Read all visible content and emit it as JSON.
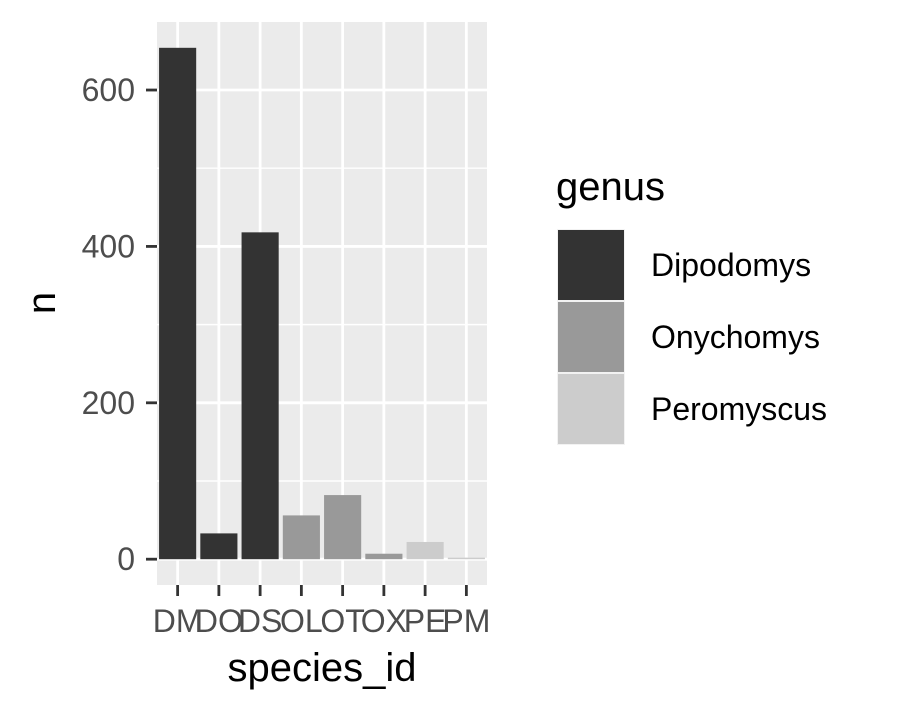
{
  "chart_data": {
    "type": "bar",
    "xlabel": "species_id",
    "ylabel": "n",
    "categories": [
      "DM",
      "DO",
      "DS",
      "OL",
      "OT",
      "OX",
      "PE",
      "PM"
    ],
    "values": [
      654,
      33,
      418,
      56,
      82,
      7,
      22,
      2
    ],
    "category_group": [
      "Dipodomys",
      "Dipodomys",
      "Dipodomys",
      "Onychomys",
      "Onychomys",
      "Onychomys",
      "Peromyscus",
      "Peromyscus"
    ],
    "y_ticks": [
      0,
      200,
      400,
      600
    ],
    "ylim": [
      -33,
      687
    ],
    "grid": true,
    "legend": {
      "title": "genus",
      "position": "right",
      "entries": [
        {
          "label": "Dipodomys",
          "color": "#333333"
        },
        {
          "label": "Onychomys",
          "color": "#999999"
        },
        {
          "label": "Peromyscus",
          "color": "#cccccc"
        }
      ]
    },
    "colors": {
      "panel_background": "#ebebeb",
      "grid_line": "#ffffff",
      "tick_text": "#4d4d4d",
      "tick_mark": "#333333"
    }
  }
}
